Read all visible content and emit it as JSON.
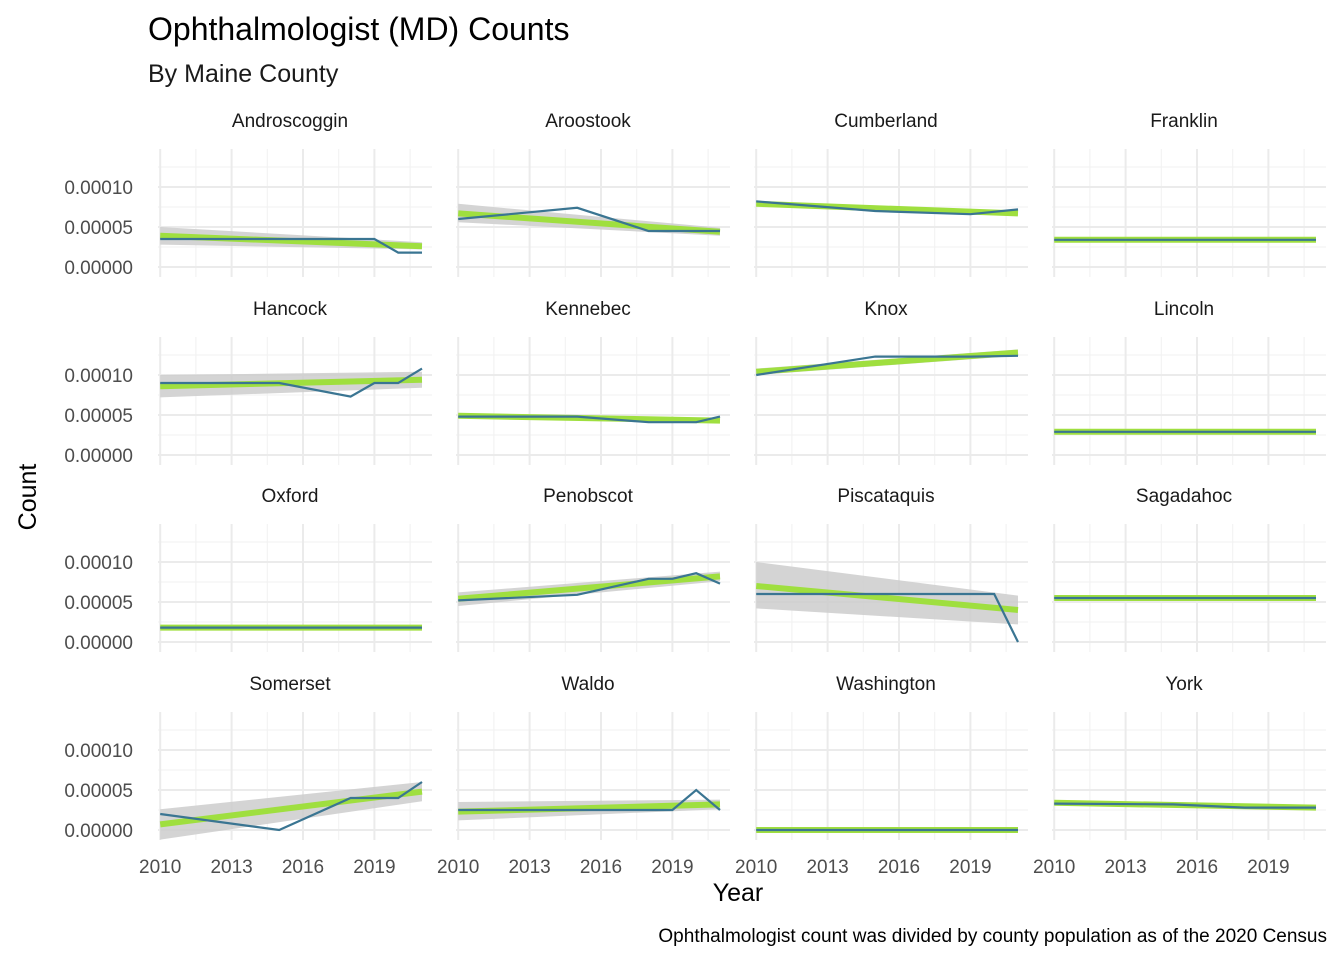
{
  "chart_data": {
    "type": "line",
    "title": "Ophthalmologist (MD) Counts",
    "subtitle": "By Maine County",
    "xlabel": "Year",
    "ylabel": "Count",
    "caption": "Ophthalmologist count was divided by county population as of the 2020 Census",
    "xlim": [
      2010,
      2021
    ],
    "ylim": [
      0,
      0.00013
    ],
    "x_ticks": [
      2010,
      2013,
      2016,
      2019
    ],
    "x_tick_labels": [
      "2010",
      "2013",
      "2016",
      "2019"
    ],
    "y_ticks": [
      0,
      5e-05,
      0.0001
    ],
    "y_tick_labels": [
      "0.00000",
      "0.00005",
      "0.00010"
    ],
    "grid": true,
    "legend": "none",
    "colors": {
      "line": "#3a7592",
      "trend": "#9fdf3f",
      "band": "#cccccc",
      "grid": "#ebebeb"
    },
    "facets": [
      {
        "name": "Androscoggin",
        "years": [
          2010,
          2015,
          2019,
          2020,
          2021
        ],
        "values": [
          3.5e-05,
          3.5e-05,
          3.5e-05,
          1.8e-05,
          1.8e-05
        ],
        "trend": [
          3.9e-05,
          2.6e-05
        ],
        "band": [
          [
            2.8e-05,
            5e-05
          ],
          [
            2.2e-05,
            3.1e-05
          ]
        ]
      },
      {
        "name": "Aroostook",
        "years": [
          2010,
          2015,
          2018,
          2021
        ],
        "values": [
          6e-05,
          7.4e-05,
          4.5e-05,
          4.5e-05
        ],
        "trend": [
          6.7e-05,
          4.4e-05
        ],
        "band": [
          [
            5.6e-05,
            7.9e-05
          ],
          [
            3.9e-05,
            4.9e-05
          ]
        ]
      },
      {
        "name": "Cumberland",
        "years": [
          2010,
          2015,
          2019,
          2021
        ],
        "values": [
          8.2e-05,
          7e-05,
          6.6e-05,
          7.2e-05
        ],
        "trend": [
          7.9e-05,
          6.7e-05
        ],
        "band": [
          [
            7.7e-05,
            8.1e-05
          ],
          [
            6.5e-05,
            6.9e-05
          ]
        ]
      },
      {
        "name": "Franklin",
        "years": [
          2010,
          2021
        ],
        "values": [
          3.4e-05,
          3.4e-05
        ],
        "trend": [
          3.4e-05,
          3.4e-05
        ],
        "band": [
          [
            3.2e-05,
            3.6e-05
          ],
          [
            3.2e-05,
            3.6e-05
          ]
        ]
      },
      {
        "name": "Hancock",
        "years": [
          2010,
          2015,
          2018,
          2019,
          2020,
          2021
        ],
        "values": [
          9e-05,
          9e-05,
          7.3e-05,
          9e-05,
          9e-05,
          0.000108
        ],
        "trend": [
          8.6e-05,
          9.4e-05
        ],
        "band": [
          [
            7.2e-05,
            0.0001
          ],
          [
            8.4e-05,
            0.000104
          ]
        ]
      },
      {
        "name": "Kennebec",
        "years": [
          2010,
          2015,
          2018,
          2020,
          2021
        ],
        "values": [
          4.8e-05,
          4.8e-05,
          4.1e-05,
          4.1e-05,
          4.8e-05
        ],
        "trend": [
          4.9e-05,
          4.3e-05
        ],
        "band": [
          [
            4.6e-05,
            5.2e-05
          ],
          [
            4e-05,
            4.6e-05
          ]
        ]
      },
      {
        "name": "Knox",
        "years": [
          2010,
          2015,
          2019,
          2021
        ],
        "values": [
          0.0001,
          0.000123,
          0.000123,
          0.000124
        ],
        "trend": [
          0.000104,
          0.000128
        ],
        "band": [
          [
            0.0001,
            0.000108
          ],
          [
            0.000124,
            0.000132
          ]
        ]
      },
      {
        "name": "Lincoln",
        "years": [
          2010,
          2021
        ],
        "values": [
          2.9e-05,
          2.9e-05
        ],
        "trend": [
          2.9e-05,
          2.9e-05
        ],
        "band": [
          [
            2.7e-05,
            3.1e-05
          ],
          [
            2.7e-05,
            3.1e-05
          ]
        ]
      },
      {
        "name": "Oxford",
        "years": [
          2010,
          2021
        ],
        "values": [
          1.8e-05,
          1.8e-05
        ],
        "trend": [
          1.8e-05,
          1.8e-05
        ],
        "band": [
          [
            1.6e-05,
            2e-05
          ],
          [
            1.6e-05,
            2e-05
          ]
        ]
      },
      {
        "name": "Penobscot",
        "years": [
          2010,
          2015,
          2018,
          2019,
          2020,
          2021
        ],
        "values": [
          5.2e-05,
          5.9e-05,
          7.9e-05,
          7.9e-05,
          8.6e-05,
          7.3e-05
        ],
        "trend": [
          5.4e-05,
          8.2e-05
        ],
        "band": [
          [
            4.5e-05,
            6.2e-05
          ],
          [
            7.6e-05,
            8.8e-05
          ]
        ]
      },
      {
        "name": "Piscataquis",
        "years": [
          2010,
          2015,
          2020,
          2021
        ],
        "values": [
          6e-05,
          6e-05,
          6e-05,
          0
        ],
        "trend": [
          7e-05,
          4e-05
        ],
        "band": [
          [
            4.2e-05,
            0.0001
          ],
          [
            2.2e-05,
            5.8e-05
          ]
        ]
      },
      {
        "name": "Sagadahoc",
        "years": [
          2010,
          2021
        ],
        "values": [
          5.5e-05,
          5.5e-05
        ],
        "trend": [
          5.5e-05,
          5.5e-05
        ],
        "band": [
          [
            5.3e-05,
            5.7e-05
          ],
          [
            5.3e-05,
            5.7e-05
          ]
        ]
      },
      {
        "name": "Somerset",
        "years": [
          2010,
          2015,
          2018,
          2020,
          2021
        ],
        "values": [
          2e-05,
          0,
          4e-05,
          4e-05,
          6e-05
        ],
        "trend": [
          7e-06,
          4.8e-05
        ],
        "band": [
          [
            -1.2e-05,
            2.6e-05
          ],
          [
            3.6e-05,
            6e-05
          ]
        ]
      },
      {
        "name": "Waldo",
        "years": [
          2010,
          2019,
          2020,
          2021
        ],
        "values": [
          2.5e-05,
          2.5e-05,
          5e-05,
          2.5e-05
        ],
        "trend": [
          2.3e-05,
          3.2e-05
        ],
        "band": [
          [
            1.2e-05,
            3.5e-05
          ],
          [
            2.6e-05,
            3.8e-05
          ]
        ]
      },
      {
        "name": "Washington",
        "years": [
          2010,
          2021
        ],
        "values": [
          0,
          0
        ],
        "trend": [
          0,
          0
        ],
        "band": [
          [
            -2e-06,
            2e-06
          ],
          [
            -2e-06,
            2e-06
          ]
        ]
      },
      {
        "name": "York",
        "years": [
          2010,
          2015,
          2018,
          2020,
          2021
        ],
        "values": [
          3.3e-05,
          3.2e-05,
          2.8e-05,
          2.8e-05,
          2.8e-05
        ],
        "trend": [
          3.4e-05,
          2.8e-05
        ],
        "band": [
          [
            3.2e-05,
            3.6e-05
          ],
          [
            2.6e-05,
            3e-05
          ]
        ]
      }
    ]
  }
}
